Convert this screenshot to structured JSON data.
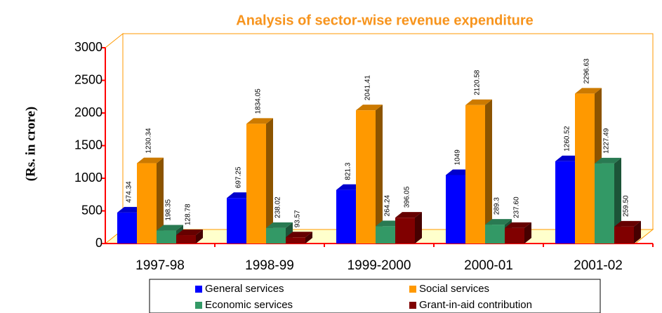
{
  "chart_data": {
    "type": "bar3d",
    "title": "Analysis of sector-wise revenue expenditure",
    "y_label": "(Rs. in crore)",
    "categories": [
      "1997-98",
      "1998-99",
      "1999-2000",
      "2000-01",
      "2001-02"
    ],
    "series": [
      {
        "name": "General services",
        "color": "#0000ff",
        "values": [
          474.34,
          697.25,
          821.3,
          1049,
          1260.52
        ]
      },
      {
        "name": "Social services",
        "color": "#ff9900",
        "values": [
          1230.34,
          1834.05,
          2041.41,
          2120.58,
          2296.63
        ]
      },
      {
        "name": "Economic services",
        "color": "#339966",
        "values": [
          198.35,
          238.02,
          264.24,
          289.3,
          1227.49
        ]
      },
      {
        "name": "Grant-in-aid contribution",
        "color": "#800000",
        "values": [
          128.78,
          93.57,
          396.05,
          237.6,
          259.5
        ],
        "value_labels": [
          "128.78",
          "93.57",
          "396.05",
          "237.60",
          "259.50"
        ]
      }
    ],
    "ylim": [
      0,
      3000
    ],
    "yticks": [
      0,
      500,
      1000,
      1500,
      2000,
      2500,
      3000
    ]
  }
}
